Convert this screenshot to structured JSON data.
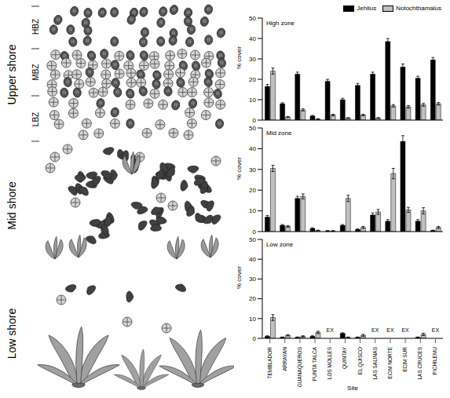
{
  "diagram": {
    "rows": [
      {
        "label": "Upper shore",
        "zones": [
          "HBZ",
          "MBZ",
          "LBZ"
        ]
      },
      {
        "label": "Mid shore"
      },
      {
        "label": "Low shore"
      }
    ]
  },
  "chart_data": [
    {
      "type": "bar",
      "title": "High zone",
      "y_label": "% cover",
      "categories": [
        "TEMBLADOR",
        "ARRAYAN",
        "GUANAQUEROS",
        "PUNTA TALCA",
        "LOS MOLLES",
        "QUINTAY",
        "EL QUISCO",
        "LAS SALINAS",
        "ECIM NORTE",
        "ECIM SUR",
        "LAS CRUCES",
        "PICHILEMU"
      ],
      "series": [
        {
          "name": "Jehlius",
          "color": "#000000",
          "values": [
            16.5,
            8,
            22.5,
            2,
            19,
            10,
            17,
            22.5,
            38.5,
            26,
            20.5,
            29.5
          ],
          "errors": [
            1,
            0.5,
            1,
            0.3,
            1,
            0.7,
            1,
            1,
            1.5,
            1.5,
            1,
            1.2
          ]
        },
        {
          "name": "Notochthamalus",
          "color": "#c0c0c0",
          "values": [
            24,
            1.5,
            5,
            0.5,
            2.5,
            1,
            2.5,
            1,
            7,
            6.5,
            7.5,
            8
          ],
          "errors": [
            1.5,
            0.3,
            0.5,
            0.2,
            0.4,
            0.2,
            0.4,
            0.2,
            0.6,
            0.6,
            0.7,
            0.6
          ]
        }
      ],
      "ylim": [
        0,
        50
      ],
      "yticks": [
        0,
        10,
        20,
        30,
        40,
        50
      ],
      "legend": "top right",
      "tick_labels": "y"
    },
    {
      "type": "bar",
      "title": "Mid zone",
      "y_label": "% cover",
      "categories": [
        "TEMBLADOR",
        "ARRAYAN",
        "GUANAQUEROS",
        "PUNTA TALCA",
        "LOS MOLLES",
        "QUINTAY",
        "EL QUISCO",
        "LAS SALINAS",
        "ECIM NORTE",
        "ECIM SUR",
        "LAS CRUCES",
        "PICHILEMU"
      ],
      "series": [
        {
          "name": "Jehlius",
          "color": "#000000",
          "values": [
            7,
            3,
            16,
            1.5,
            0.3,
            3,
            1,
            8,
            5,
            43.5,
            5,
            0.5
          ],
          "errors": [
            0.8,
            0.4,
            1,
            0.3,
            0.2,
            0.4,
            0.3,
            1,
            0.8,
            2.8,
            0.8,
            0.2
          ]
        },
        {
          "name": "Notochthamalus",
          "color": "#c0c0c0",
          "values": [
            30.5,
            2.5,
            17,
            0.5,
            0.3,
            16,
            2,
            9.5,
            28,
            10.5,
            10,
            2
          ],
          "errors": [
            1.5,
            0.4,
            1.2,
            0.2,
            0.2,
            1.5,
            0.5,
            1.2,
            2.5,
            1.2,
            1.5,
            0.5
          ]
        }
      ],
      "ylim": [
        0,
        50
      ],
      "yticks": [
        0,
        10,
        20,
        30,
        40,
        50
      ],
      "tick_labels": "y"
    },
    {
      "type": "bar",
      "title": "Low zone",
      "y_label": "% cover",
      "x_label": "Site",
      "categories": [
        "TEMBLADOR",
        "ARRAYAN",
        "GUANAQUEROS",
        "PUNTA TALCA",
        "LOS MOLLES",
        "QUINTAY",
        "EL QUISCO",
        "LAS SALINAS",
        "ECIM NORTE",
        "ECIM SUR",
        "LAS CRUCES",
        "PICHILEMU"
      ],
      "series": [
        {
          "name": "Jehlius",
          "color": "#000000",
          "values": [
            1,
            0.5,
            0.5,
            1,
            null,
            2.5,
            0.5,
            null,
            null,
            null,
            0.5,
            null
          ],
          "errors": [
            0.3,
            0.2,
            0.2,
            0.3,
            null,
            0.3,
            0.2,
            null,
            null,
            null,
            0.2,
            null
          ]
        },
        {
          "name": "Notochthamalus",
          "color": "#c0c0c0",
          "values": [
            10.5,
            1.5,
            1,
            3,
            null,
            0.5,
            1.5,
            null,
            null,
            null,
            2,
            null
          ],
          "errors": [
            1.5,
            0.3,
            0.3,
            0.6,
            null,
            0.2,
            0.5,
            null,
            null,
            null,
            0.6,
            null
          ]
        }
      ],
      "ylim": [
        0,
        50
      ],
      "yticks": [
        0,
        10,
        20,
        30,
        40,
        50
      ],
      "annotations": [
        {
          "category": "LOS MOLLES",
          "text": "EX"
        },
        {
          "category": "LAS SALINAS",
          "text": "EX"
        },
        {
          "category": "ECIM NORTE",
          "text": "EX"
        },
        {
          "category": "ECIM SUR",
          "text": "EX"
        },
        {
          "category": "PICHILEMU",
          "text": "EX"
        }
      ]
    }
  ]
}
